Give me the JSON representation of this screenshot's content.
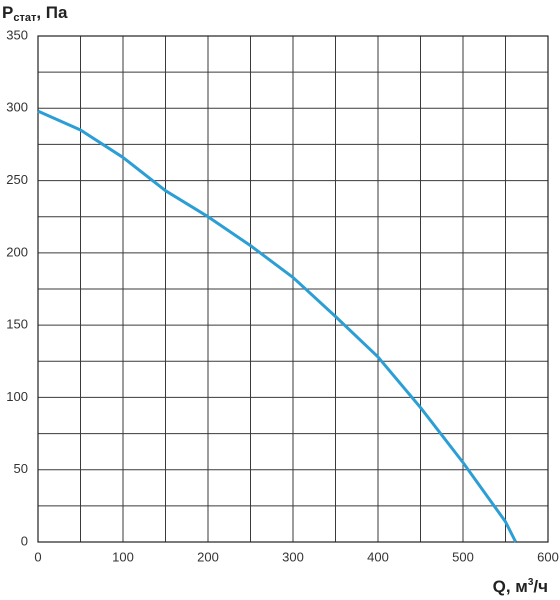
{
  "chart_data": {
    "type": "line",
    "ylabel": {
      "base": "P",
      "sub": "стат",
      "rest": ", Па"
    },
    "xlabel": {
      "base": "Q, м",
      "sup": "3",
      "rest": "/ч"
    },
    "x": [
      0,
      50,
      100,
      150,
      200,
      250,
      300,
      350,
      400,
      450,
      500,
      550,
      562
    ],
    "values": [
      298,
      285,
      266,
      243,
      225,
      205,
      183,
      156,
      128,
      93,
      55,
      14,
      0
    ],
    "color": "#2b9fd5",
    "xlim": [
      0,
      600
    ],
    "xticks": [
      0,
      100,
      200,
      300,
      400,
      500,
      600
    ],
    "xminorticks": [
      50,
      150,
      250,
      350,
      450,
      550
    ],
    "ylim": [
      0,
      350
    ],
    "yticks": [
      0,
      50,
      100,
      150,
      200,
      250,
      300,
      350
    ],
    "yminorticks": [
      25,
      75,
      125,
      175,
      225,
      275,
      325
    ],
    "grid": true
  }
}
